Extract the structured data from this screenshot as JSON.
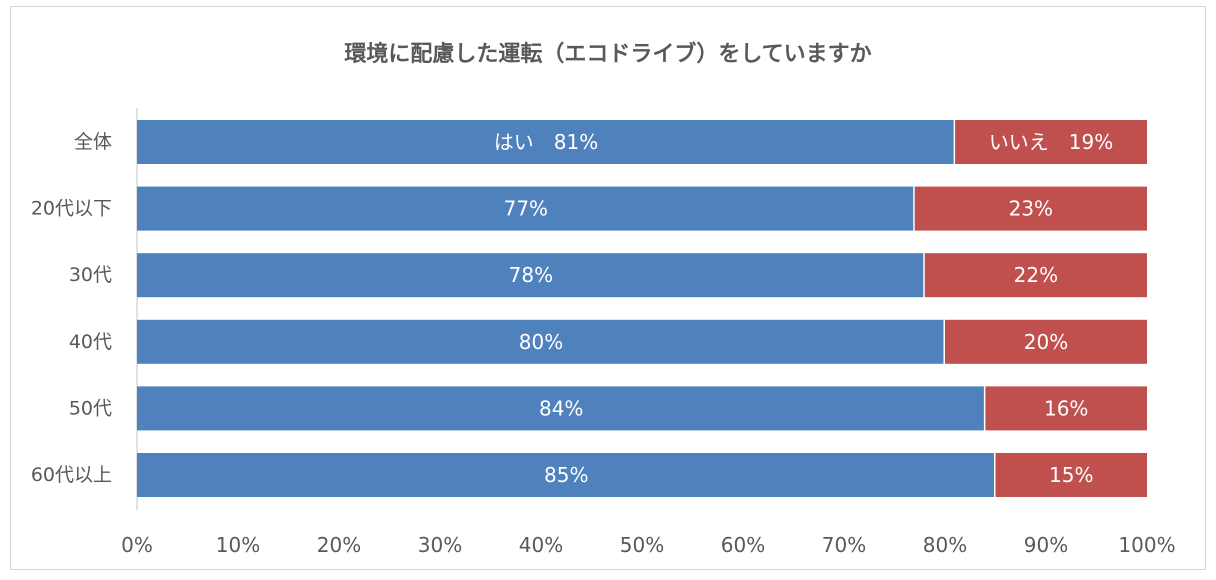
{
  "chart_data": {
    "type": "bar",
    "orientation": "horizontal",
    "stacked": true,
    "title": "環境に配慮した運転（エコドライブ）をしていますか",
    "categories": [
      "全体",
      "20代以下",
      "30代",
      "40代",
      "50代",
      "60代以上"
    ],
    "series": [
      {
        "name": "はい",
        "color": "#4f81bd",
        "values": [
          81,
          77,
          78,
          80,
          84,
          85
        ],
        "labels": [
          "はい　81%",
          "77%",
          "78%",
          "80%",
          "84%",
          "85%"
        ]
      },
      {
        "name": "いいえ",
        "color": "#c0504d",
        "values": [
          19,
          23,
          22,
          20,
          16,
          15
        ],
        "labels": [
          "いいえ　19%",
          "23%",
          "22%",
          "20%",
          "16%",
          "15%"
        ]
      }
    ],
    "xlim": [
      0,
      100
    ],
    "x_ticks": [
      "0%",
      "10%",
      "20%",
      "30%",
      "40%",
      "50%",
      "60%",
      "70%",
      "80%",
      "90%",
      "100%"
    ],
    "xlabel": "",
    "ylabel": "",
    "grid": false,
    "legend": "none"
  }
}
